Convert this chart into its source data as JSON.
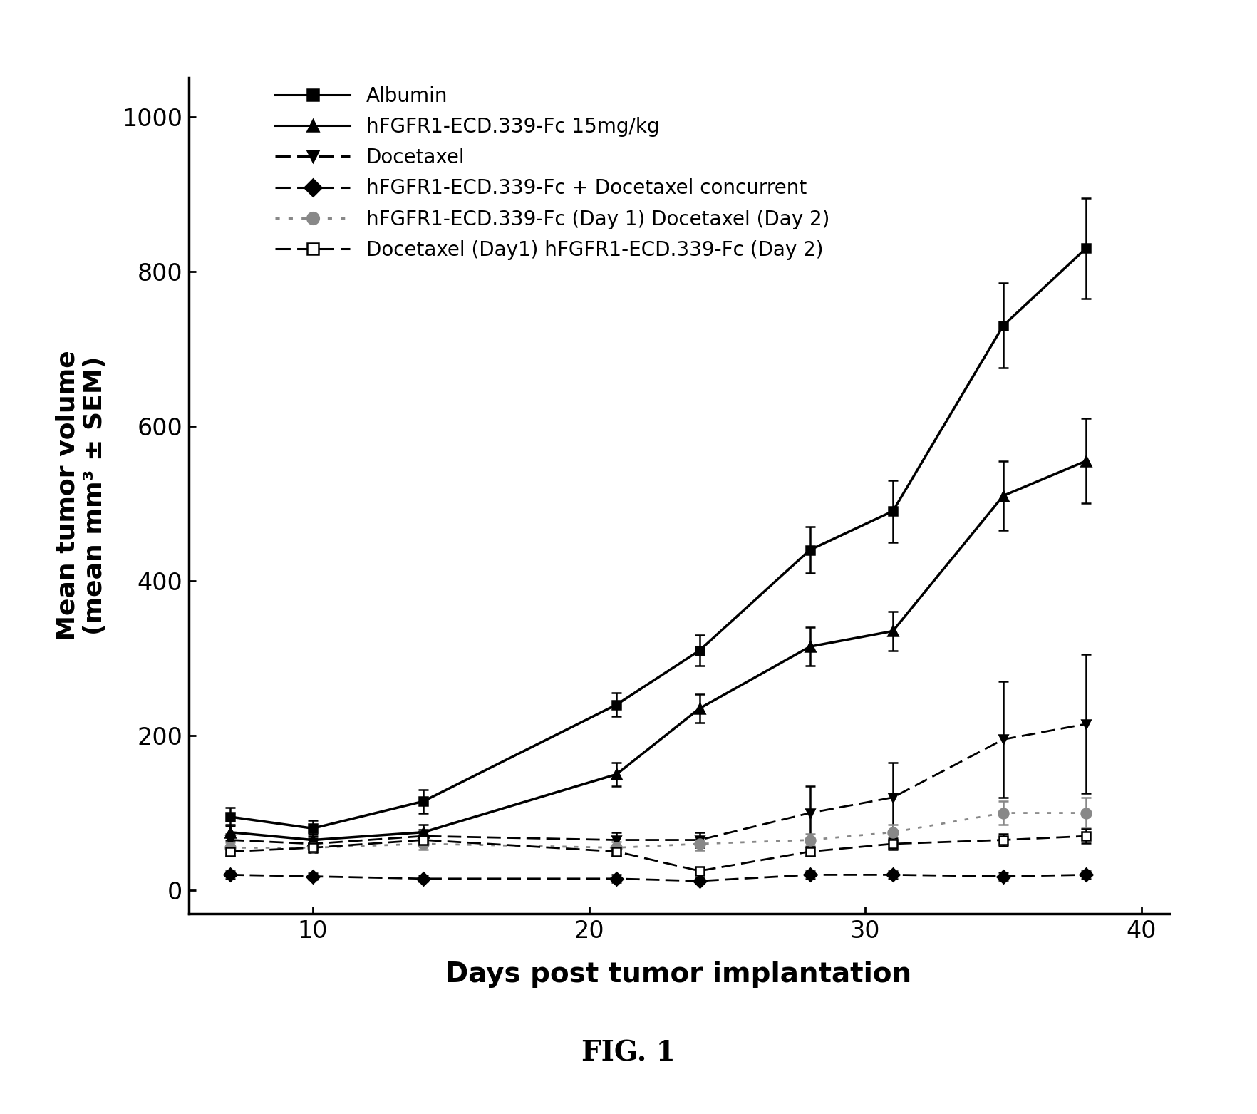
{
  "title": "FIG. 1",
  "xlabel": "Days post tumor implantation",
  "ylabel": "Mean tumor volume\n(mean mm³ ± SEM)",
  "xlim": [
    5.5,
    41
  ],
  "ylim": [
    -30,
    1050
  ],
  "xticks": [
    10,
    20,
    30,
    40
  ],
  "yticks": [
    0,
    200,
    400,
    600,
    800,
    1000
  ],
  "series": [
    {
      "label": "Albumin",
      "x": [
        7,
        10,
        14,
        21,
        24,
        28,
        31,
        35,
        38
      ],
      "y": [
        95,
        80,
        115,
        240,
        310,
        440,
        490,
        730,
        830
      ],
      "yerr": [
        12,
        10,
        15,
        15,
        20,
        30,
        40,
        55,
        65
      ],
      "color": "#000000",
      "linestyle": "solid",
      "marker": "s",
      "markersize": 9,
      "linewidth": 2.5,
      "dashes": [],
      "markerfacecolor": "#000000"
    },
    {
      "label": "hFGFR1-ECD.339-Fc 15mg/kg",
      "x": [
        7,
        10,
        14,
        21,
        24,
        28,
        31,
        35,
        38
      ],
      "y": [
        75,
        65,
        75,
        150,
        235,
        315,
        335,
        510,
        555
      ],
      "yerr": [
        10,
        8,
        10,
        15,
        18,
        25,
        25,
        45,
        55
      ],
      "color": "#000000",
      "linestyle": "solid",
      "marker": "^",
      "markersize": 10,
      "linewidth": 2.5,
      "dashes": [],
      "markerfacecolor": "#000000"
    },
    {
      "label": "Docetaxel",
      "x": [
        7,
        10,
        14,
        21,
        24,
        28,
        31,
        35,
        38
      ],
      "y": [
        65,
        60,
        70,
        65,
        65,
        100,
        120,
        195,
        215
      ],
      "yerr": [
        8,
        7,
        8,
        10,
        10,
        35,
        45,
        75,
        90
      ],
      "color": "#000000",
      "linestyle": "dashed",
      "marker": "v",
      "markersize": 9,
      "linewidth": 2.0,
      "dashes": [
        7,
        3
      ],
      "markerfacecolor": "#000000"
    },
    {
      "label": "hFGFR1-ECD.339-Fc + Docetaxel concurrent",
      "x": [
        7,
        10,
        14,
        21,
        24,
        28,
        31,
        35,
        38
      ],
      "y": [
        20,
        18,
        15,
        15,
        12,
        20,
        20,
        18,
        20
      ],
      "yerr": [
        5,
        4,
        4,
        5,
        4,
        5,
        5,
        5,
        5
      ],
      "color": "#000000",
      "linestyle": "dashed",
      "marker": "D",
      "markersize": 9,
      "linewidth": 2.0,
      "dashes": [
        7,
        3
      ],
      "markerfacecolor": "#000000"
    },
    {
      "label": "hFGFR1-ECD.339-Fc (Day 1) Docetaxel (Day 2)",
      "x": [
        7,
        10,
        14,
        21,
        24,
        28,
        31,
        35,
        38
      ],
      "y": [
        55,
        55,
        60,
        55,
        60,
        65,
        75,
        100,
        100
      ],
      "yerr": [
        7,
        6,
        7,
        8,
        8,
        8,
        10,
        15,
        20
      ],
      "color": "#888888",
      "linestyle": "dotted",
      "marker": "o",
      "markersize": 10,
      "linewidth": 2.0,
      "dashes": [
        2,
        4
      ],
      "markerfacecolor": "#888888"
    },
    {
      "label": "Docetaxel (Day1) hFGFR1-ECD.339-Fc (Day 2)",
      "x": [
        7,
        10,
        14,
        21,
        24,
        28,
        31,
        35,
        38
      ],
      "y": [
        50,
        55,
        65,
        50,
        25,
        50,
        60,
        65,
        70
      ],
      "yerr": [
        6,
        6,
        7,
        6,
        5,
        6,
        7,
        8,
        9
      ],
      "color": "#000000",
      "linestyle": "dashed",
      "marker": "s",
      "markersize": 9,
      "linewidth": 2.0,
      "dashes": [
        7,
        3
      ],
      "markerfacecolor": "white"
    }
  ],
  "fig1_label": "FIG. 1",
  "fig1_fontsize": 28
}
